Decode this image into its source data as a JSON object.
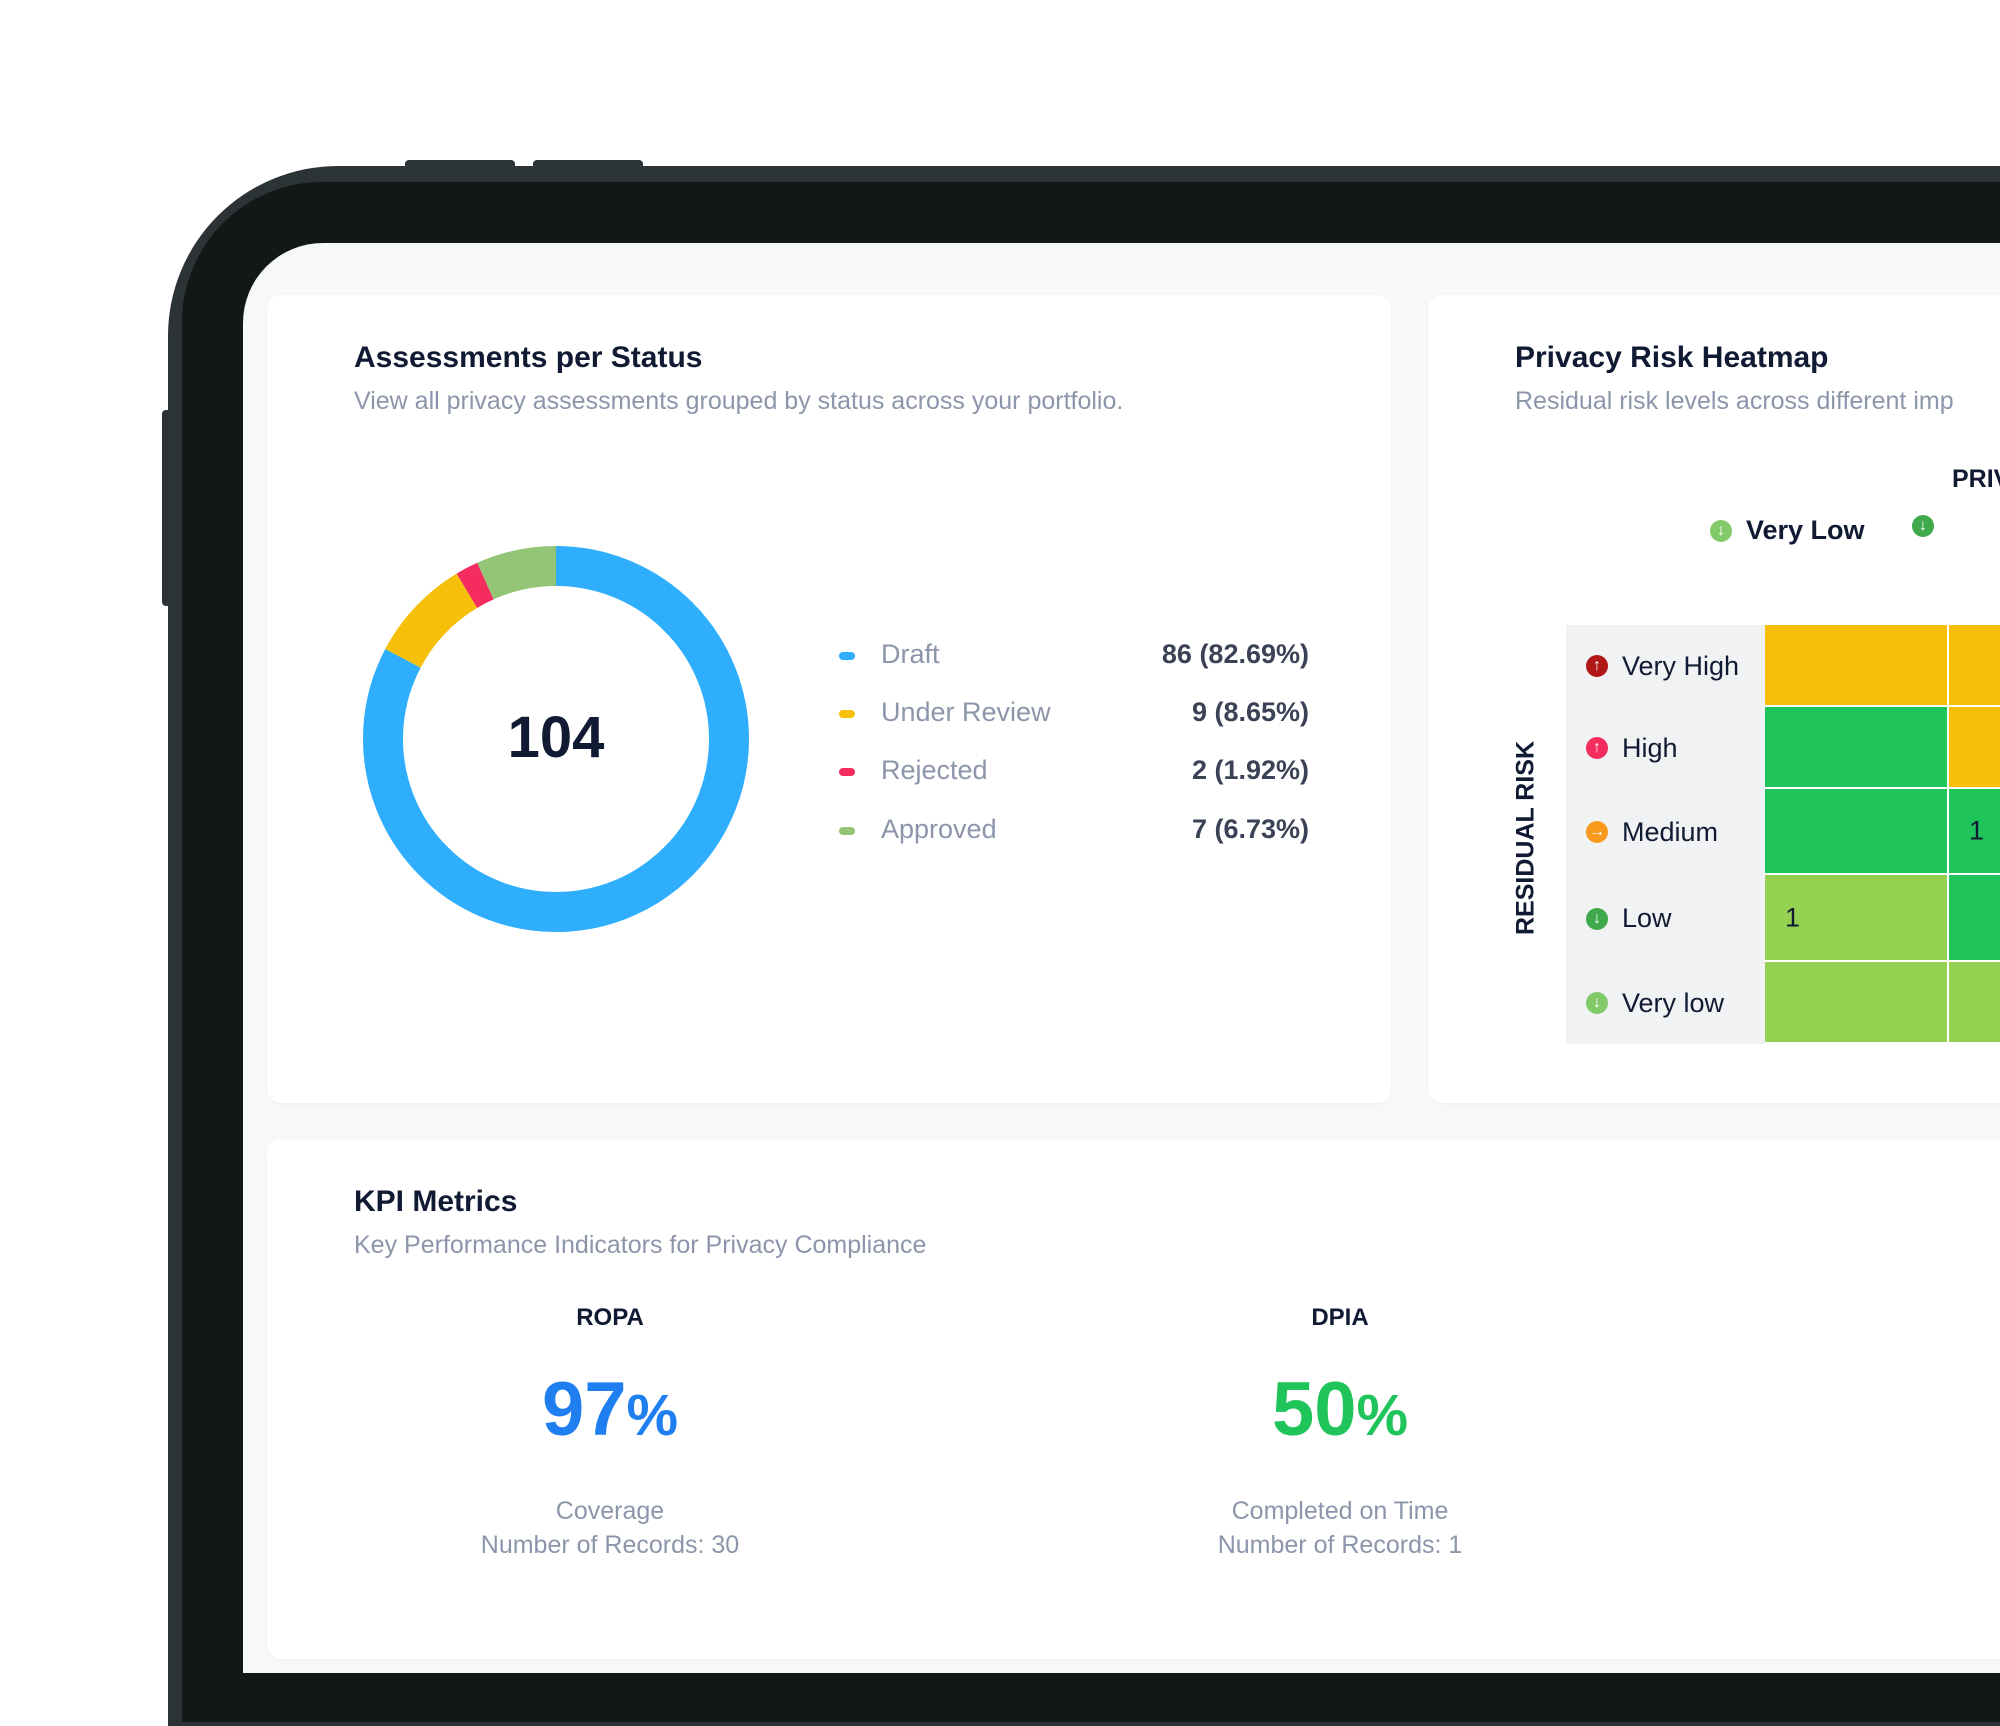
{
  "assessments": {
    "title": "Assessments per Status",
    "subtitle": "View all privacy assessments grouped by status across your portfolio.",
    "total": "104",
    "legend": [
      {
        "label": "Draft",
        "value": "86 (82.69%)",
        "color": "#2eaefc"
      },
      {
        "label": "Under Review",
        "value": "9 (8.65%)",
        "color": "#f5bf0a"
      },
      {
        "label": "Rejected",
        "value": "2 (1.92%)",
        "color": "#f52c5e"
      },
      {
        "label": "Approved",
        "value": "7 (6.73%)",
        "color": "#94c577"
      }
    ]
  },
  "chart_data": {
    "type": "pie",
    "title": "Assessments per Status",
    "categories": [
      "Draft",
      "Under Review",
      "Rejected",
      "Approved"
    ],
    "values": [
      86,
      9,
      2,
      7
    ],
    "total": 104,
    "colors": [
      "#2eaefc",
      "#f5bf0a",
      "#f52c5e",
      "#94c577"
    ]
  },
  "heatmap": {
    "title": "Privacy Risk Heatmap",
    "subtitle": "Residual risk levels across different imp",
    "col_axis_title": "PRIV",
    "row_axis_title": "RESIDUAL RISK",
    "columns": [
      "Very Low",
      ""
    ],
    "rows": [
      {
        "label": "Very High",
        "icon": "arrow-up-circle-icon",
        "icon_color": "#b01717",
        "glyph": "↑",
        "cells": [
          "",
          ""
        ],
        "colors": [
          "#f5bf0a",
          "#f5bf0a"
        ]
      },
      {
        "label": "High",
        "icon": "arrow-up-circle-icon",
        "icon_color": "#f52c5e",
        "glyph": "↑",
        "cells": [
          "",
          ""
        ],
        "colors": [
          "#1fc55a",
          "#f5bf0a"
        ]
      },
      {
        "label": "Medium",
        "icon": "arrow-right-circle-icon",
        "icon_color": "#f79a1c",
        "glyph": "→",
        "cells": [
          "",
          "1"
        ],
        "colors": [
          "#1fc55a",
          "#1fc55a"
        ]
      },
      {
        "label": "Low",
        "icon": "arrow-down-circle-icon",
        "icon_color": "#3fa94b",
        "glyph": "↓",
        "cells": [
          "1",
          ""
        ],
        "colors": [
          "#94d151",
          "#1fc55a"
        ]
      },
      {
        "label": "Very low",
        "icon": "arrow-down-circle-icon",
        "icon_color": "#82c96a",
        "glyph": "↓",
        "cells": [
          "",
          ""
        ],
        "colors": [
          "#94d151",
          "#94d151"
        ]
      }
    ]
  },
  "kpi": {
    "title": "KPI Metrics",
    "subtitle": "Key Performance Indicators for Privacy Compliance",
    "metrics": [
      {
        "name": "ROPA",
        "value": "97",
        "unit": "%",
        "color": "#1f7ff0",
        "desc": "Coverage",
        "records": "Number of Records: 30"
      },
      {
        "name": "DPIA",
        "value": "50",
        "unit": "%",
        "color": "#1fc55a",
        "desc": "Completed on Time",
        "records": "Number of Records: 1"
      }
    ]
  }
}
